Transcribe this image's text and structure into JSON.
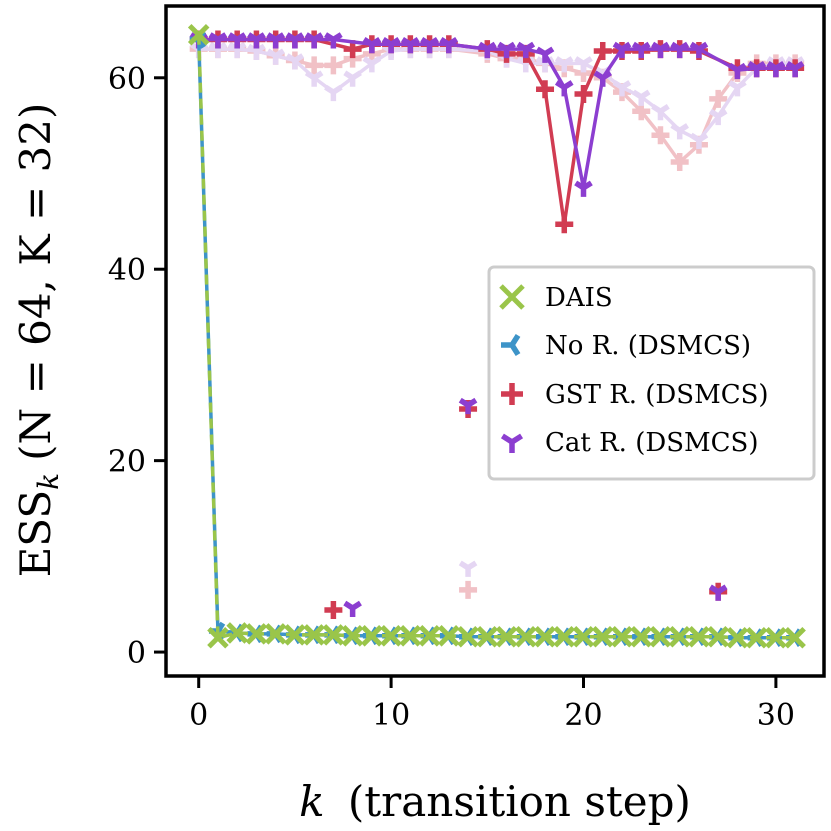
{
  "chart_data": {
    "type": "line",
    "xlabel": "(transition step)",
    "xlabel_var": "k",
    "ylabel": "ESS",
    "ylabel_sub": "k",
    "ylabel_suffix": "(N = 64, K = 32)",
    "xlim": [
      -1.7,
      32.5
    ],
    "ylim": [
      -2.5,
      67.5
    ],
    "xticks": [
      0,
      10,
      20,
      30
    ],
    "yticks": [
      0,
      20,
      40,
      60
    ],
    "legend_position": "center-right",
    "series": [
      {
        "name": "DAIS",
        "color": "#9ac54a",
        "marker": "x",
        "linestyle": "dashed",
        "x": [
          0,
          1,
          2,
          3,
          4,
          5,
          6,
          7,
          8,
          9,
          10,
          11,
          12,
          13,
          14,
          15,
          16,
          17,
          18,
          19,
          20,
          21,
          22,
          23,
          24,
          25,
          26,
          27,
          28,
          29,
          30,
          31
        ],
        "y": [
          64.5,
          1.5,
          2.0,
          1.9,
          1.9,
          1.8,
          1.8,
          1.8,
          1.7,
          1.7,
          1.7,
          1.7,
          1.7,
          1.7,
          1.6,
          1.6,
          1.6,
          1.6,
          1.6,
          1.6,
          1.6,
          1.6,
          1.6,
          1.6,
          1.6,
          1.6,
          1.6,
          1.6,
          1.5,
          1.5,
          1.5,
          1.5
        ]
      },
      {
        "name": "No R. (DSMCS)",
        "color": "#3d94c8",
        "marker": "tri_left",
        "linestyle": "solid",
        "x": [
          0,
          1,
          2,
          3,
          4,
          5,
          6,
          7,
          8,
          9,
          10,
          11,
          12,
          13,
          14,
          15,
          16,
          17,
          18,
          19,
          20,
          21,
          22,
          23,
          24,
          25,
          26,
          27,
          28,
          29,
          30,
          31
        ],
        "y": [
          64.0,
          2.2,
          2.0,
          1.9,
          1.9,
          1.8,
          1.8,
          1.8,
          1.7,
          1.7,
          1.7,
          1.7,
          1.7,
          1.7,
          1.6,
          1.6,
          1.6,
          1.6,
          1.6,
          1.6,
          1.6,
          1.6,
          1.6,
          1.6,
          1.6,
          1.6,
          1.6,
          1.6,
          1.5,
          1.5,
          1.5,
          1.5
        ]
      },
      {
        "name": "GST R. (DSMCS)",
        "color": "#d13c52",
        "marker": "plus",
        "linestyle": "solid",
        "x": [
          0,
          1,
          2,
          3,
          4,
          5,
          6,
          8,
          9,
          10,
          11,
          12,
          13,
          15,
          16,
          17,
          18,
          19,
          20,
          21,
          22,
          23,
          24,
          25,
          26,
          28,
          29,
          30,
          31
        ],
        "y": [
          64.0,
          64.0,
          64.0,
          64.0,
          64.0,
          64.0,
          64.0,
          63.0,
          63.5,
          63.5,
          63.5,
          63.5,
          63.5,
          63.0,
          62.5,
          62.5,
          58.8,
          44.7,
          58.3,
          62.8,
          62.8,
          62.8,
          63.0,
          63.0,
          62.8,
          61.0,
          61.0,
          61.0,
          61.0
        ],
        "isolated_x": [
          7,
          14,
          27
        ],
        "isolated_y": [
          4.4,
          25.4,
          6.3
        ]
      },
      {
        "name": "Cat R. (DSMCS)",
        "color": "#8c3ed0",
        "marker": "tri_down",
        "linestyle": "solid",
        "x": [
          0,
          1,
          2,
          3,
          4,
          5,
          6,
          7,
          9,
          10,
          11,
          12,
          13,
          15,
          16,
          17,
          18,
          19,
          20,
          21,
          22,
          23,
          24,
          25,
          26,
          28,
          29,
          30,
          31
        ],
        "y": [
          64.0,
          64.0,
          64.0,
          64.0,
          64.0,
          64.0,
          64.0,
          64.0,
          63.5,
          63.5,
          63.5,
          63.5,
          63.5,
          63.0,
          63.0,
          63.0,
          62.5,
          59.0,
          48.5,
          60.0,
          63.0,
          63.0,
          63.0,
          63.0,
          63.0,
          60.8,
          61.0,
          61.0,
          61.0
        ],
        "isolated_x": [
          8,
          14,
          27
        ],
        "isolated_y": [
          4.6,
          25.8,
          6.3
        ]
      }
    ],
    "faded_series": [
      {
        "name": "GST R. (faded)",
        "color": "#f1c1c6",
        "marker": "plus",
        "x": [
          0,
          1,
          2,
          3,
          4,
          5,
          6,
          7,
          8,
          9,
          10,
          11,
          12,
          13,
          15,
          16,
          17,
          18,
          19,
          20,
          21,
          22,
          23,
          24,
          25,
          26,
          27,
          28,
          29,
          30,
          31
        ],
        "y": [
          63.0,
          63.0,
          63.0,
          62.8,
          62.3,
          61.8,
          61.3,
          61.3,
          62.0,
          62.5,
          63.0,
          63.0,
          63.0,
          63.0,
          62.5,
          62.0,
          62.0,
          61.5,
          61.0,
          60.5,
          60.0,
          58.5,
          56.5,
          54.0,
          51.2,
          53.0,
          57.8,
          60.5,
          61.5,
          61.5,
          61.5
        ],
        "isolated_x": [
          14
        ],
        "isolated_y": [
          6.5
        ]
      },
      {
        "name": "Cat R. (faded)",
        "color": "#e5d6f3",
        "marker": "tri_down",
        "x": [
          0,
          1,
          2,
          3,
          4,
          5,
          6,
          7,
          8,
          9,
          10,
          11,
          12,
          13,
          15,
          16,
          17,
          18,
          19,
          20,
          21,
          22,
          23,
          24,
          25,
          26,
          27,
          28,
          29,
          30,
          31
        ],
        "y": [
          63.0,
          63.0,
          63.0,
          62.8,
          62.3,
          61.8,
          60.0,
          58.5,
          60.0,
          61.5,
          62.8,
          63.0,
          63.0,
          63.0,
          62.8,
          62.0,
          61.5,
          61.5,
          61.5,
          61.5,
          60.5,
          59.0,
          58.0,
          56.5,
          54.5,
          53.5,
          56.0,
          59.0,
          61.0,
          61.5,
          61.5
        ],
        "isolated_x": [
          14
        ],
        "isolated_y": [
          8.8
        ]
      }
    ]
  },
  "legend": {
    "items": [
      {
        "label": "DAIS",
        "color": "#9ac54a",
        "marker": "x"
      },
      {
        "label": "No R. (DSMCS)",
        "color": "#3d94c8",
        "marker": "tri_left"
      },
      {
        "label": "GST R. (DSMCS)",
        "color": "#d13c52",
        "marker": "plus"
      },
      {
        "label": "Cat R. (DSMCS)",
        "color": "#8c3ed0",
        "marker": "tri_down"
      }
    ]
  }
}
